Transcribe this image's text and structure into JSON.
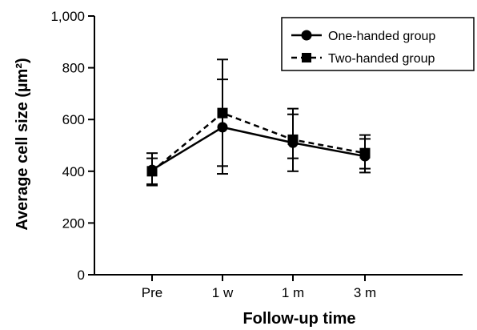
{
  "chart_data": {
    "type": "line",
    "title": "",
    "xlabel": "Follow-up time",
    "ylabel": "Average cell size (µm²)",
    "categories": [
      "Pre",
      "1 w",
      "1 m",
      "3 m"
    ],
    "ylim": [
      0,
      1000
    ],
    "yticks": [
      0,
      200,
      400,
      600,
      800,
      1000
    ],
    "ytick_labels": [
      "0",
      "200",
      "400",
      "600",
      "800",
      "1,000"
    ],
    "grid": false,
    "legend_position": "top-right",
    "series": [
      {
        "name": "One-handed group",
        "marker": "circle",
        "line_style": "solid",
        "color": "#000000",
        "values": [
          405,
          570,
          510,
          458
        ],
        "err_low": [
          345,
          390,
          400,
          395
        ],
        "err_high": [
          470,
          755,
          620,
          525
        ]
      },
      {
        "name": "Two-handed group",
        "marker": "square",
        "line_style": "dashed",
        "color": "#000000",
        "values": [
          400,
          625,
          522,
          470
        ],
        "err_low": [
          350,
          420,
          450,
          410
        ],
        "err_high": [
          450,
          832,
          642,
          540
        ]
      }
    ]
  }
}
